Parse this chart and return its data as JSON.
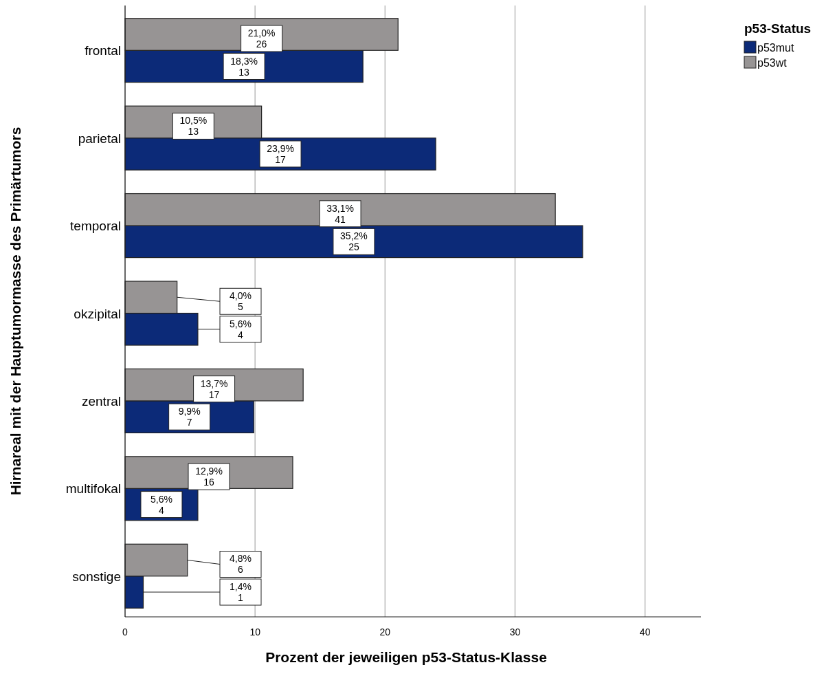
{
  "chart_data": {
    "type": "bar",
    "orientation": "horizontal",
    "xlabel": "Prozent der jeweiligen p53-Status-Klasse",
    "ylabel": "Hirnareal mit der Hauptumormasse des Primärtumors",
    "legend_title": "p53-Status",
    "categories": [
      "frontal",
      "parietal",
      "temporal",
      "okzipital",
      "zentral",
      "multifokal",
      "sonstige"
    ],
    "series": [
      {
        "name": "p53mut",
        "color": "#0c2a78",
        "values": [
          18.3,
          23.9,
          35.2,
          5.6,
          9.9,
          5.6,
          1.4
        ],
        "value_labels": [
          "18,3%\n13",
          "23,9%\n17",
          "35,2%\n25",
          "5,6%\n4",
          "9,9%\n7",
          "5,6%\n4",
          "1,4%\n1"
        ]
      },
      {
        "name": "p53wt",
        "color": "#979494",
        "values": [
          21.0,
          10.5,
          33.1,
          4.0,
          13.7,
          12.9,
          4.8
        ],
        "value_labels": [
          "21,0%\n26",
          "10,5%\n13",
          "33,1%\n41",
          "4,0%\n5",
          "13,7%\n17",
          "12,9%\n16",
          "4,8%\n6"
        ]
      }
    ],
    "xlim": [
      0,
      44.3
    ],
    "xticks": [
      0,
      10,
      20,
      30,
      40
    ],
    "grid": "x",
    "legend": "top right"
  }
}
